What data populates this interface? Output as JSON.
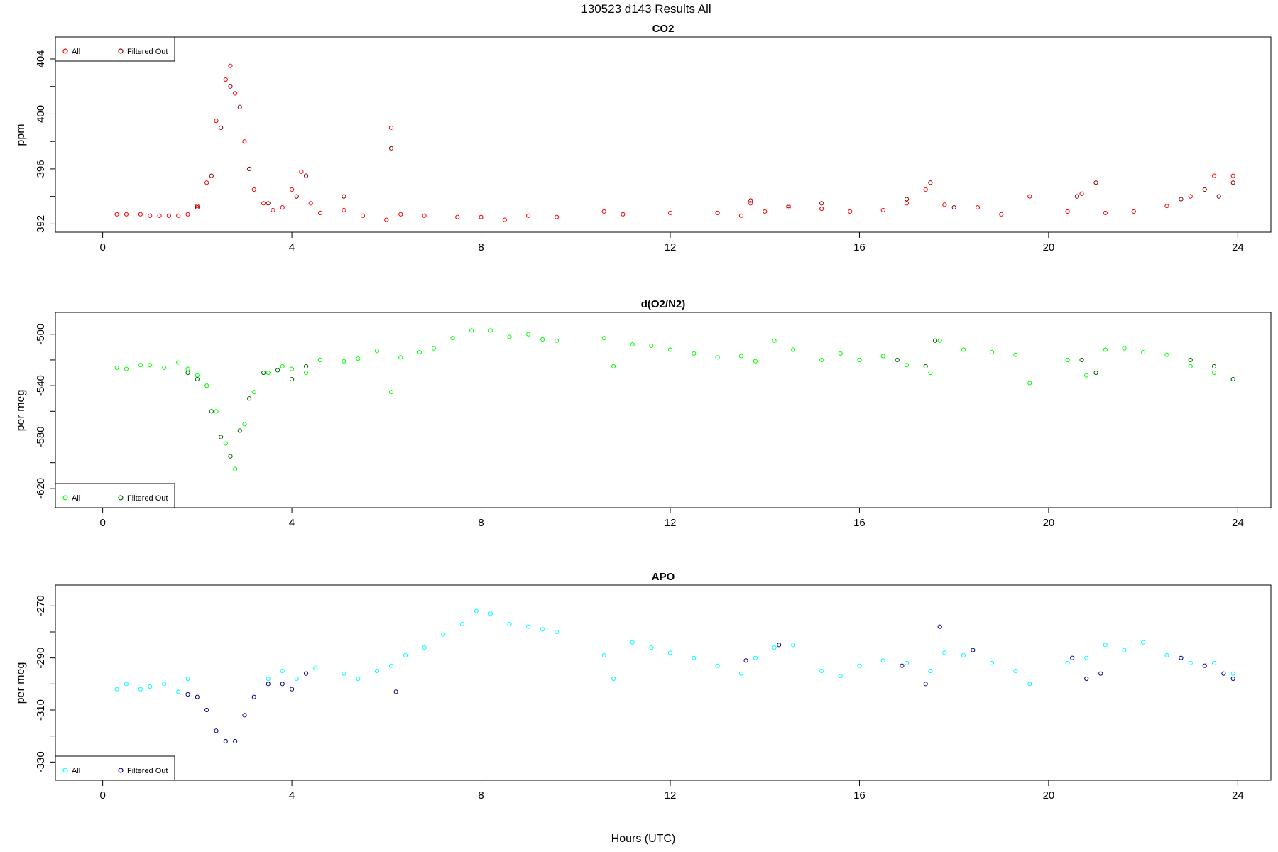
{
  "suptitle": "130523   d143   Results All",
  "xlabel": "Hours (UTC)",
  "chart_data": [
    {
      "type": "scatter",
      "title": "CO2",
      "ylabel": "ppm",
      "xlim": [
        -1.0,
        24.7
      ],
      "ylim": [
        391.4,
        405.6
      ],
      "xticks": [
        0,
        4,
        8,
        12,
        16,
        20,
        24
      ],
      "yticks": [
        392,
        396,
        400,
        404
      ],
      "grid": false,
      "legend_placement": "top-left",
      "legend": [
        "All",
        "Filtered Out"
      ],
      "colors": {
        "all": "#ff0000",
        "filtered": "#8b0000"
      },
      "series": [
        {
          "name": "All",
          "x": [
            0.3,
            0.5,
            0.8,
            1.0,
            1.2,
            1.4,
            1.6,
            1.8,
            2.0,
            2.2,
            2.4,
            2.6,
            2.7,
            2.8,
            3.0,
            3.2,
            3.4,
            3.6,
            3.8,
            4.0,
            4.2,
            4.4,
            4.6,
            5.1,
            5.5,
            6.0,
            6.1,
            6.3,
            6.8,
            7.5,
            8.0,
            8.5,
            9.0,
            9.6,
            10.6,
            11.0,
            12.0,
            13.0,
            13.5,
            13.7,
            14.0,
            14.5,
            15.2,
            15.8,
            16.5,
            17.0,
            17.4,
            17.8,
            18.5,
            19.0,
            19.6,
            20.4,
            20.7,
            21.2,
            21.8,
            22.5,
            23.0,
            23.5,
            23.9
          ],
          "y": [
            392.7,
            392.7,
            392.7,
            392.6,
            392.6,
            392.6,
            392.6,
            392.7,
            393.3,
            395.0,
            399.5,
            402.5,
            403.5,
            401.5,
            398.0,
            394.5,
            393.5,
            393.0,
            393.2,
            394.5,
            395.8,
            393.5,
            392.8,
            393.0,
            392.6,
            392.3,
            399.0,
            392.7,
            392.6,
            392.5,
            392.5,
            392.3,
            392.6,
            392.5,
            392.9,
            392.7,
            392.8,
            392.8,
            392.6,
            393.5,
            392.9,
            393.2,
            393.1,
            392.9,
            393.0,
            393.5,
            394.5,
            393.4,
            393.2,
            392.7,
            394.0,
            392.9,
            394.2,
            392.8,
            392.9,
            393.3,
            394.0,
            395.5,
            395.5
          ]
        },
        {
          "name": "Filtered Out",
          "x": [
            2.0,
            2.3,
            2.5,
            2.7,
            2.9,
            3.1,
            3.5,
            4.1,
            4.3,
            5.1,
            6.1,
            13.7,
            14.5,
            15.2,
            17.0,
            17.5,
            18.0,
            20.6,
            21.0,
            22.8,
            23.3,
            23.6,
            23.9
          ],
          "y": [
            393.2,
            395.5,
            399.0,
            402.0,
            400.5,
            396.0,
            393.5,
            394.0,
            395.5,
            394.0,
            397.5,
            393.7,
            393.3,
            393.5,
            393.8,
            395.0,
            393.2,
            394.0,
            395.0,
            393.8,
            394.5,
            394.0,
            395.0
          ]
        }
      ]
    },
    {
      "type": "scatter",
      "title": "d(O2/N2)",
      "ylabel": "per meg",
      "xlim": [
        -1.0,
        24.7
      ],
      "ylim": [
        -635,
        -483
      ],
      "xticks": [
        0,
        4,
        8,
        12,
        16,
        20,
        24
      ],
      "yticks": [
        -620,
        -580,
        -540,
        -500
      ],
      "grid": false,
      "legend_placement": "bottom-left",
      "legend": [
        "All",
        "Filtered Out"
      ],
      "colors": {
        "all": "#00ff00",
        "filtered": "#006400"
      },
      "series": [
        {
          "name": "All",
          "x": [
            0.3,
            0.5,
            0.8,
            1.0,
            1.3,
            1.6,
            1.8,
            2.0,
            2.2,
            2.4,
            2.6,
            2.8,
            3.0,
            3.2,
            3.5,
            3.8,
            4.0,
            4.3,
            4.6,
            5.1,
            5.4,
            5.8,
            6.1,
            6.3,
            6.7,
            7.0,
            7.4,
            7.8,
            8.2,
            8.6,
            9.0,
            9.3,
            9.6,
            10.6,
            10.8,
            11.2,
            11.6,
            12.0,
            12.5,
            13.0,
            13.5,
            13.8,
            14.2,
            14.6,
            15.2,
            15.6,
            16.0,
            16.5,
            17.0,
            17.5,
            17.7,
            18.2,
            18.8,
            19.3,
            19.6,
            20.4,
            20.8,
            21.2,
            21.6,
            22.0,
            22.5,
            23.0,
            23.5,
            23.9
          ],
          "y": [
            -526,
            -527,
            -524,
            -524,
            -526,
            -522,
            -527,
            -532,
            -540,
            -560,
            -585,
            -605,
            -570,
            -545,
            -530,
            -525,
            -527,
            -530,
            -520,
            -521,
            -519,
            -513,
            -545,
            -518,
            -514,
            -511,
            -503,
            -497,
            -497,
            -502,
            -500,
            -504,
            -505,
            -503,
            -525,
            -508,
            -509,
            -512,
            -515,
            -518,
            -517,
            -521,
            -505,
            -512,
            -520,
            -515,
            -520,
            -517,
            -524,
            -530,
            -505,
            -512,
            -514,
            -516,
            -538,
            -520,
            -532,
            -512,
            -511,
            -514,
            -516,
            -525,
            -530,
            -535
          ]
        },
        {
          "name": "Filtered Out",
          "x": [
            1.8,
            2.0,
            2.3,
            2.5,
            2.7,
            2.9,
            3.1,
            3.4,
            3.7,
            4.0,
            4.3,
            16.8,
            17.4,
            17.6,
            20.7,
            21.0,
            23.0,
            23.5,
            23.9
          ],
          "y": [
            -530,
            -535,
            -560,
            -580,
            -595,
            -575,
            -550,
            -530,
            -528,
            -535,
            -525,
            -520,
            -525,
            -505,
            -520,
            -530,
            -520,
            -525,
            -535
          ]
        }
      ]
    },
    {
      "type": "scatter",
      "title": "APO",
      "ylabel": "per meg",
      "xlim": [
        -1.0,
        24.7
      ],
      "ylim": [
        -337,
        -262
      ],
      "xticks": [
        0,
        4,
        8,
        12,
        16,
        20,
        24
      ],
      "yticks": [
        -330,
        -310,
        -290,
        -270
      ],
      "grid": false,
      "legend_placement": "bottom-left",
      "legend": [
        "All",
        "Filtered Out"
      ],
      "colors": {
        "all": "#00ffff",
        "filtered": "#00008b"
      },
      "series": [
        {
          "name": "All",
          "x": [
            0.3,
            0.5,
            0.8,
            1.0,
            1.3,
            1.6,
            1.8,
            3.5,
            3.8,
            4.1,
            4.5,
            5.1,
            5.4,
            5.8,
            6.1,
            6.4,
            6.8,
            7.2,
            7.6,
            7.9,
            8.2,
            8.6,
            9.0,
            9.3,
            9.6,
            10.6,
            10.8,
            11.2,
            11.6,
            12.0,
            12.5,
            13.0,
            13.5,
            13.8,
            14.2,
            14.6,
            15.2,
            15.6,
            16.0,
            16.5,
            17.0,
            17.5,
            17.8,
            18.2,
            18.8,
            19.3,
            19.6,
            20.4,
            20.8,
            21.2,
            21.6,
            22.0,
            22.5,
            23.0,
            23.5,
            23.9
          ],
          "y": [
            -302,
            -300,
            -302,
            -301,
            -300,
            -303,
            -298,
            -298,
            -295,
            -298,
            -294,
            -296,
            -298,
            -295,
            -293,
            -289,
            -286,
            -281,
            -277,
            -272,
            -273,
            -277,
            -278,
            -279,
            -280,
            -289,
            -298,
            -284,
            -286,
            -288,
            -290,
            -293,
            -296,
            -290,
            -286,
            -285,
            -295,
            -297,
            -293,
            -291,
            -292,
            -295,
            -288,
            -289,
            -292,
            -295,
            -300,
            -292,
            -290,
            -285,
            -287,
            -284,
            -289,
            -292,
            -292,
            -296
          ]
        },
        {
          "name": "Filtered Out",
          "x": [
            1.8,
            2.0,
            2.2,
            2.4,
            2.6,
            2.8,
            3.0,
            3.2,
            3.5,
            3.8,
            4.0,
            4.3,
            6.2,
            13.6,
            14.3,
            16.9,
            17.4,
            17.7,
            18.4,
            20.5,
            20.8,
            21.1,
            22.8,
            23.3,
            23.7,
            23.9
          ],
          "y": [
            -304,
            -305,
            -310,
            -318,
            -322,
            -322,
            -312,
            -305,
            -300,
            -300,
            -302,
            -296,
            -303,
            -291,
            -285,
            -293,
            -300,
            -278,
            -287,
            -290,
            -298,
            -296,
            -290,
            -293,
            -296,
            -298
          ]
        }
      ]
    }
  ]
}
